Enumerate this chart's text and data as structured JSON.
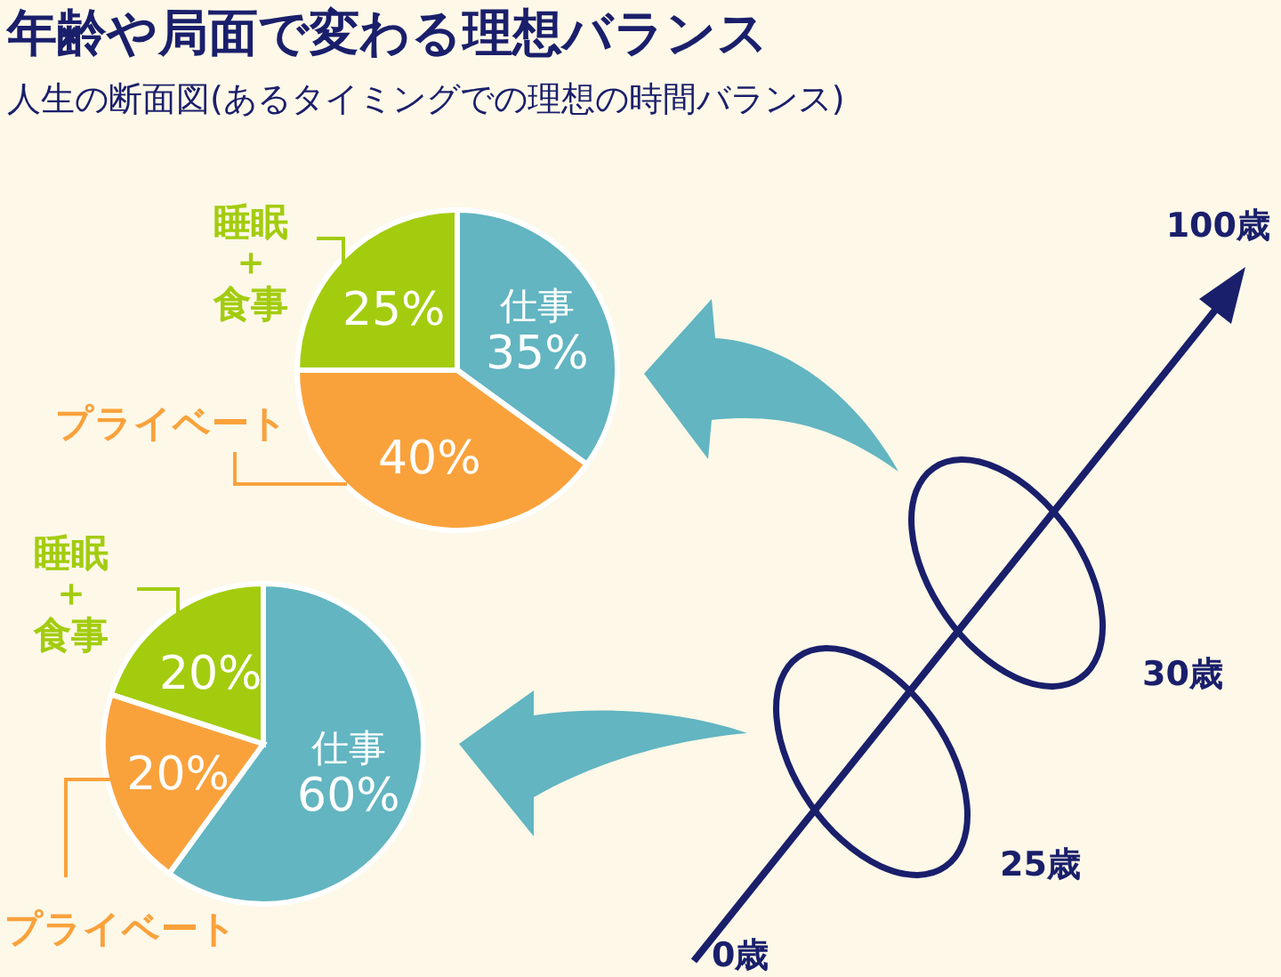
{
  "chart_data": [
    {
      "type": "pie",
      "title": "年齢や局面で変わる理想バランス",
      "subtitle": "人生の断面図(あるタイミングでの理想の時間バランス)",
      "categories": [
        "仕事",
        "プライベート",
        "睡眠＋食事"
      ],
      "values": [
        35,
        40,
        25
      ],
      "value_labels": [
        "35%",
        "40%",
        "25%"
      ],
      "colors": [
        "#62b5c1",
        "#f9a23c",
        "#a3cc0f"
      ],
      "annotations": [
        "100歳",
        "30歳"
      ]
    },
    {
      "type": "pie",
      "categories": [
        "仕事",
        "プライベート",
        "睡眠＋食事"
      ],
      "values": [
        60,
        20,
        20
      ],
      "value_labels": [
        "60%",
        "20%",
        "20%"
      ],
      "colors": [
        "#62b5c1",
        "#f9a23c",
        "#a3cc0f"
      ],
      "annotations": [
        "25歳",
        "0歳"
      ]
    }
  ]
}
